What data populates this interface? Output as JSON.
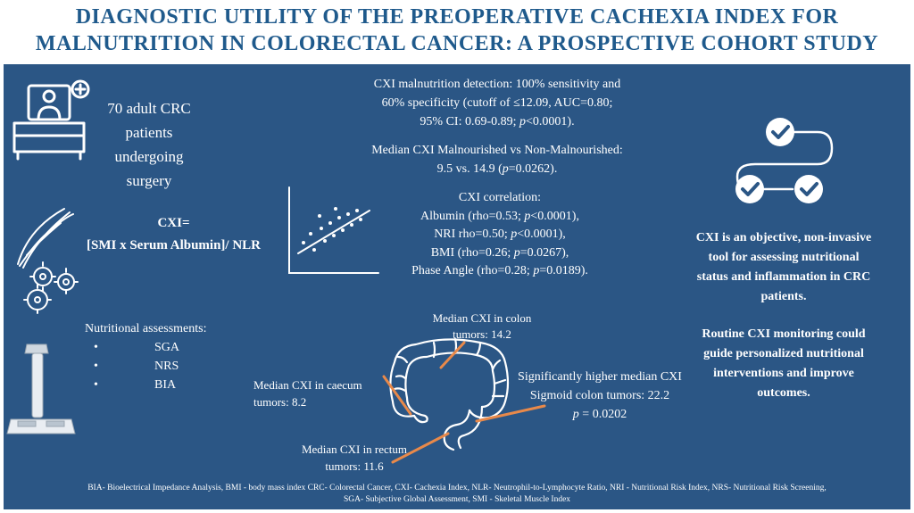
{
  "title": {
    "line1": "DIAGNOSTIC UTILITY OF THE PREOPERATIVE CACHEXIA INDEX FOR",
    "line2": "MALNUTRITION IN COLORECTAL CANCER: A PROSPECTIVE COHORT STUDY"
  },
  "cohort": {
    "line1": "70 adult CRC",
    "line2": "patients",
    "line3": "undergoing",
    "line4": "surgery",
    "icon": "patient-bed-icon"
  },
  "formula": {
    "line1": "CXI=",
    "line2": "[SMI x Serum Albumin]/ NLR",
    "icon": "muscle-cells-icon"
  },
  "assessments": {
    "heading": "Nutritional assessments:",
    "items": [
      "SGA",
      "NRS",
      "BIA"
    ],
    "icon": "bia-scale-icon"
  },
  "detection": {
    "line1": "CXI malnutrition detection: 100% sensitivity and",
    "line2": "60% specificity (cutoff of ≤12.09, AUC=0.80;",
    "line3a": "95% CI: 0.69-0.89; ",
    "p": "p",
    "line3b": "<0.0001)."
  },
  "median": {
    "line1": "Median CXI Malnourished vs Non-Malnourished:",
    "line2a": "9.5 vs. 14.9 (",
    "p": "p",
    "line2b": "=0.0262)."
  },
  "correlation": {
    "heading": "CXI correlation:",
    "l1a": "Albumin (rho=0.53; ",
    "l1b": "<0.0001),",
    "l2a": "NRI rho=0.50; ",
    "l2b": "<0.0001),",
    "l3a": "BMI (rho=0.26; ",
    "l3b": "=0.0267),",
    "l4a": "Phase Angle (rho=0.28; ",
    "l4b": "=0.0189).",
    "p": "p",
    "icon": "scatter-plot-icon"
  },
  "colon": {
    "colon_label1": "Median CXI in colon",
    "colon_label2": "tumors: 14.2",
    "caecum_label1": "Median CXI in caecum",
    "caecum_label2": "tumors: 8.2",
    "rectum_label1": "Median CXI in rectum",
    "rectum_label2": "tumors: 11.6",
    "sigmoid_label1": "Significantly higher median CXI",
    "sigmoid_label2": "Sigmoid colon tumors: 22.2",
    "sigmoid_p": "p",
    "sigmoid_p_val": " = 0.0202",
    "icon": "colon-icon",
    "pointer_color": "#e8894a"
  },
  "conclusion": {
    "p1_l1": "CXI is an objective, non-invasive",
    "p1_l2": "tool for assessing nutritional",
    "p1_l3": "status and inflammation in CRC",
    "p1_l4": "patients.",
    "p2_l1": "Routine CXI monitoring could",
    "p2_l2": "guide personalized nutritional",
    "p2_l3": "interventions and improve",
    "p2_l4": "outcomes.",
    "icon": "checklist-icon"
  },
  "footer": {
    "line1": "BIA- Bioelectrical Impedance Analysis, BMI - body mass index CRC- Colorectal Cancer, CXI- Cachexia Index, NLR- Neutrophil-to-Lymphocyte Ratio, NRI - Nutritional Risk Index, NRS- Nutritional Risk Screening,",
    "line2": "SGA- Subjective Global Assessment, SMI - Skeletal Muscle Index"
  },
  "colors": {
    "title": "#1f5a8c",
    "panel": "#2b5685",
    "text": "#ffffff",
    "accent": "#e8894a"
  }
}
